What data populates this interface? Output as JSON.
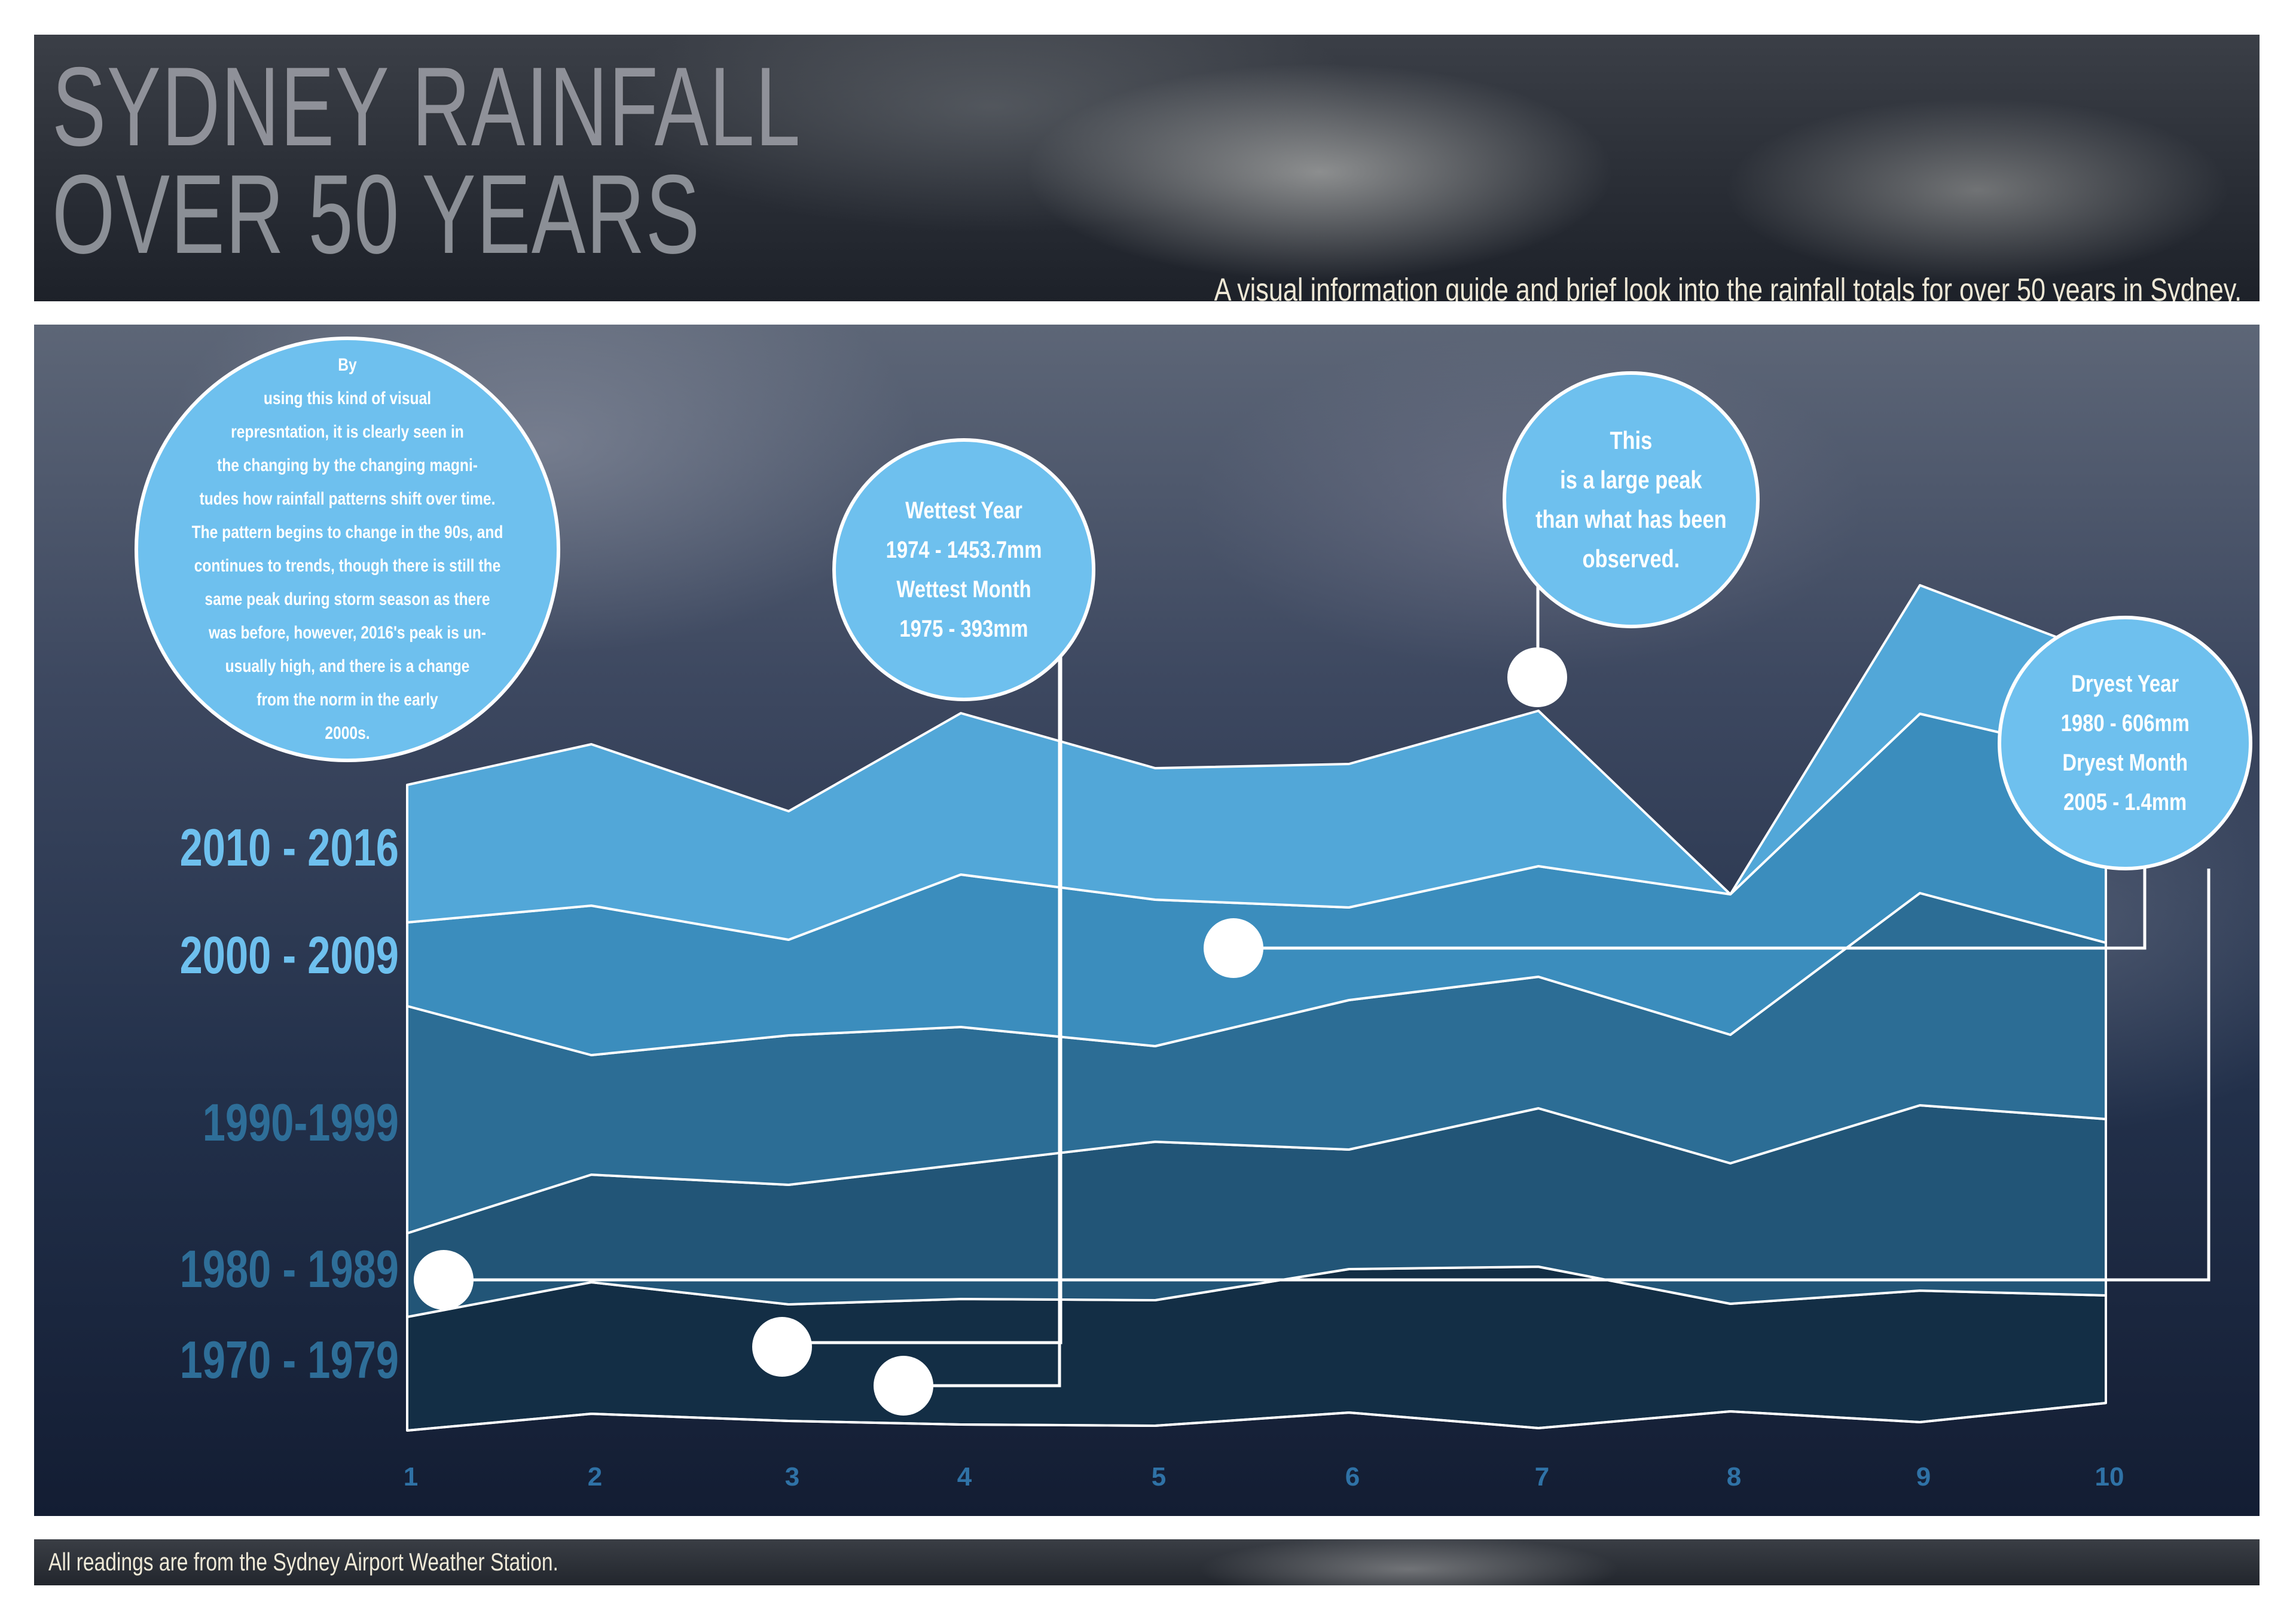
{
  "header": {
    "title_line1": "SYDNEY RAINFALL",
    "title_line2": "OVER 50 YEARS",
    "subtitle": "A visual information guide and brief look into the rainfall totals for over 50 years in Sydney."
  },
  "footer": {
    "note": "All readings are from the Sydney Airport Weather Station."
  },
  "intro": {
    "text": "By\nusing this kind of visual\nrepresntation, it is clearly seen in\nthe changing by the changing magni-\ntudes how rainfall patterns shift over time.\nThe pattern begins to change in the 90s, and\ncontinues to trends, though there is still the\nsame peak during storm season as there\nwas before, however, 2016's peak is un-\nusually high, and there is a change\nfrom the norm in the early\n2000s."
  },
  "callouts": {
    "wettest": {
      "year_label": "Wettest Year",
      "year_value": "1974 - 1453.7mm",
      "month_label": "Wettest Month",
      "month_value": "1975 - 393mm"
    },
    "peak": {
      "text": "This\nis a large peak\nthan what has been\nobserved."
    },
    "dryest": {
      "year_label": "Dryest Year",
      "year_value": "1980 - 606mm",
      "month_label": "Dryest Month",
      "month_value": "2005 - 1.4mm"
    }
  },
  "colors": {
    "layer_2010_2016": "#52a7d8",
    "layer_2000_2009": "#3b8dbd",
    "layer_1990_1999": "#2c6d95",
    "layer_1980_1989": "#225577",
    "layer_1970_1979": "#132e45",
    "label_light": "#6ec0ee",
    "label_dark": "#2e6e98",
    "line": "#ffffff"
  },
  "chart_data": {
    "type": "area",
    "stacked": true,
    "x": [
      1,
      2,
      3,
      4,
      5,
      6,
      7,
      8,
      9,
      10
    ],
    "series": [
      {
        "name": "1970 - 1979",
        "values": [
          190,
          220,
          195,
          210,
          210,
          240,
          270,
          180,
          220,
          180
        ]
      },
      {
        "name": "1980 - 1989",
        "values": [
          140,
          180,
          200,
          225,
          265,
          200,
          265,
          235,
          310,
          295
        ]
      },
      {
        "name": "1990-1999",
        "values": [
          380,
          200,
          250,
          230,
          160,
          250,
          220,
          215,
          355,
          295
        ]
      },
      {
        "name": "2000 - 2009",
        "values": [
          140,
          250,
          160,
          255,
          245,
          155,
          185,
          235,
          300,
          310
        ]
      },
      {
        "name": "2010 - 2016",
        "values": [
          230,
          270,
          215,
          270,
          220,
          240,
          260,
          0,
          215,
          170
        ]
      }
    ],
    "row_labels": [
      "2010 - 2016",
      "2000 - 2009",
      "1990-1999",
      "1980 - 1989",
      "1970 - 1979"
    ],
    "xlabel": "",
    "ylabel": "",
    "grid": false,
    "legend": "left"
  }
}
